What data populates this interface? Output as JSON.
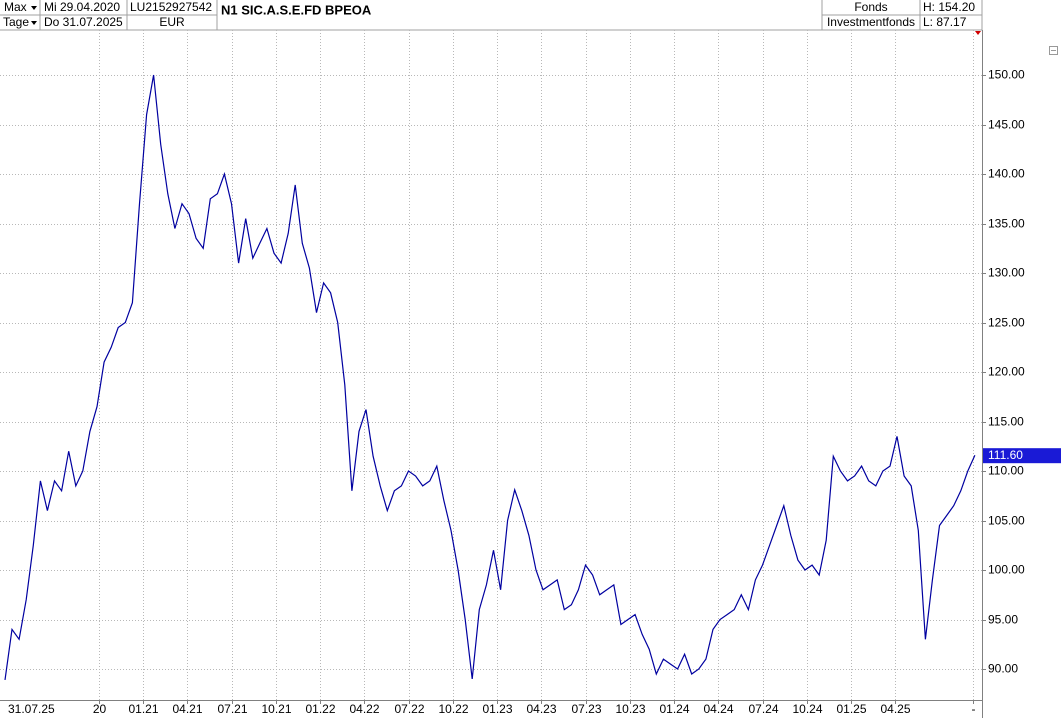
{
  "header": {
    "period": "Max",
    "unit": "Tage",
    "start_date": "Mi 29.04.2020",
    "end_date": "Do 31.07.2025",
    "isin": "LU2152927542",
    "currency": "EUR",
    "name": "N1 SIC.A.S.E.FD BPEOA",
    "kind": "Fonds",
    "subkind": "Investmentfonds",
    "high": "H: 154.20",
    "low": "L: 87.17"
  },
  "chart_data": {
    "type": "line",
    "color": "#0000a0",
    "grid": true,
    "x_corner_label": "31.07.25",
    "last_value_label": "111.60",
    "xlim": [
      2020.192,
      2025.74
    ],
    "ylim": [
      86.87,
      154.55
    ],
    "xticks": [
      {
        "value": 2020.75,
        "label": "20"
      },
      {
        "value": 2021.0,
        "label": "01.21"
      },
      {
        "value": 2021.25,
        "label": "04.21"
      },
      {
        "value": 2021.5,
        "label": "07.21"
      },
      {
        "value": 2021.75,
        "label": "10.21"
      },
      {
        "value": 2022.0,
        "label": "01.22"
      },
      {
        "value": 2022.25,
        "label": "04.22"
      },
      {
        "value": 2022.5,
        "label": "07.22"
      },
      {
        "value": 2022.75,
        "label": "10.22"
      },
      {
        "value": 2023.0,
        "label": "01.23"
      },
      {
        "value": 2023.25,
        "label": "04.23"
      },
      {
        "value": 2023.5,
        "label": "07.23"
      },
      {
        "value": 2023.75,
        "label": "10.23"
      },
      {
        "value": 2024.0,
        "label": "01.24"
      },
      {
        "value": 2024.25,
        "label": "04.24"
      },
      {
        "value": 2024.5,
        "label": "07.24"
      },
      {
        "value": 2024.75,
        "label": "10.24"
      },
      {
        "value": 2025.0,
        "label": "01.25"
      },
      {
        "value": 2025.25,
        "label": "04.25"
      },
      {
        "value": 2025.69,
        "label": "-"
      }
    ],
    "yticks": [
      {
        "value": 90,
        "label": "90.00"
      },
      {
        "value": 95,
        "label": "95.00"
      },
      {
        "value": 100,
        "label": "100.00"
      },
      {
        "value": 105,
        "label": "105.00"
      },
      {
        "value": 110,
        "label": "110.00"
      },
      {
        "value": 115,
        "label": "115.00"
      },
      {
        "value": 120,
        "label": "120.00"
      },
      {
        "value": 125,
        "label": "125.00"
      },
      {
        "value": 130,
        "label": "130.00"
      },
      {
        "value": 135,
        "label": "135.00"
      },
      {
        "value": 140,
        "label": "140.00"
      },
      {
        "value": 145,
        "label": "145.00"
      },
      {
        "value": 150,
        "label": "150.00"
      }
    ],
    "x": [
      2020.22,
      2020.26,
      2020.3,
      2020.34,
      2020.38,
      2020.42,
      2020.46,
      2020.5,
      2020.54,
      2020.58,
      2020.62,
      2020.66,
      2020.7,
      2020.74,
      2020.78,
      2020.82,
      2020.86,
      2020.9,
      2020.94,
      2020.98,
      2021.02,
      2021.06,
      2021.1,
      2021.14,
      2021.18,
      2021.22,
      2021.26,
      2021.3,
      2021.34,
      2021.38,
      2021.42,
      2021.46,
      2021.5,
      2021.54,
      2021.58,
      2021.62,
      2021.66,
      2021.7,
      2021.74,
      2021.78,
      2021.82,
      2021.86,
      2021.9,
      2021.94,
      2021.98,
      2022.02,
      2022.06,
      2022.1,
      2022.14,
      2022.18,
      2022.22,
      2022.26,
      2022.3,
      2022.34,
      2022.38,
      2022.42,
      2022.46,
      2022.5,
      2022.54,
      2022.58,
      2022.62,
      2022.66,
      2022.7,
      2022.74,
      2022.78,
      2022.82,
      2022.86,
      2022.9,
      2022.94,
      2022.98,
      2023.02,
      2023.06,
      2023.1,
      2023.14,
      2023.18,
      2023.22,
      2023.26,
      2023.3,
      2023.34,
      2023.38,
      2023.42,
      2023.46,
      2023.5,
      2023.54,
      2023.58,
      2023.62,
      2023.66,
      2023.7,
      2023.74,
      2023.78,
      2023.82,
      2023.86,
      2023.9,
      2023.94,
      2023.98,
      2024.02,
      2024.06,
      2024.1,
      2024.14,
      2024.18,
      2024.22,
      2024.26,
      2024.3,
      2024.34,
      2024.38,
      2024.42,
      2024.46,
      2024.5,
      2024.54,
      2024.58,
      2024.62,
      2024.66,
      2024.7,
      2024.74,
      2024.78,
      2024.82,
      2024.86,
      2024.9,
      2024.94,
      2024.98,
      2025.02,
      2025.06,
      2025.1,
      2025.14,
      2025.18,
      2025.22,
      2025.26,
      2025.3,
      2025.34,
      2025.38,
      2025.42,
      2025.46,
      2025.5,
      2025.54,
      2025.58,
      2025.62,
      2025.66,
      2025.7
    ],
    "values": [
      88.9,
      94.0,
      93.0,
      97.0,
      102.5,
      109.0,
      106.0,
      109.0,
      108.0,
      112.0,
      108.5,
      110.0,
      114.0,
      116.5,
      121.0,
      122.5,
      124.5,
      125.0,
      127.0,
      137.0,
      146.0,
      150.0,
      143.0,
      138.0,
      134.5,
      137.0,
      136.0,
      133.5,
      132.5,
      137.5,
      138.0,
      140.0,
      137.0,
      131.0,
      135.5,
      131.5,
      133.0,
      134.5,
      132.0,
      131.0,
      134.0,
      138.9,
      133.0,
      130.5,
      126.0,
      129.0,
      128.0,
      125.0,
      118.7,
      108.0,
      114.0,
      116.2,
      111.5,
      108.5,
      106.0,
      108.0,
      108.5,
      110.0,
      109.5,
      108.5,
      109.0,
      110.5,
      107.0,
      104.0,
      100.0,
      95.0,
      89.0,
      96.0,
      98.5,
      102.0,
      98.0,
      105.0,
      108.1,
      106.0,
      103.5,
      100.0,
      98.0,
      98.5,
      99.0,
      96.0,
      96.5,
      98.0,
      100.5,
      99.5,
      97.5,
      98.0,
      98.5,
      94.5,
      95.0,
      95.5,
      93.5,
      92.0,
      89.5,
      91.0,
      90.5,
      90.0,
      91.5,
      89.5,
      90.0,
      91.0,
      94.0,
      95.0,
      95.5,
      96.0,
      97.5,
      96.0,
      99.0,
      100.5,
      102.5,
      104.5,
      106.5,
      103.5,
      101.0,
      100.0,
      100.5,
      99.5,
      103.0,
      111.5,
      110.0,
      109.0,
      109.5,
      110.5,
      109.0,
      108.5,
      110.0,
      110.5,
      113.5,
      109.5,
      108.5,
      104.0,
      93.0,
      99.0,
      104.5,
      105.5,
      106.5,
      108.0,
      110.0,
      111.6
    ]
  }
}
